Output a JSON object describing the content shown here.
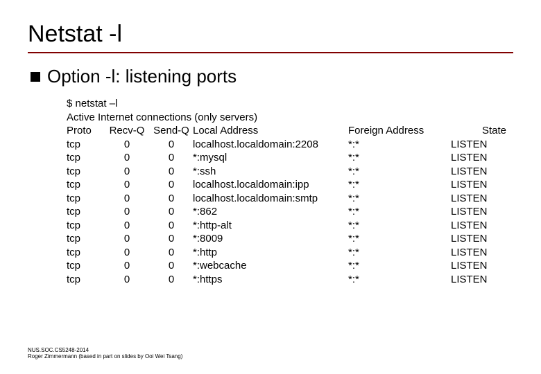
{
  "title": "Netstat -l",
  "bullet": "Option -l: listening ports",
  "cmd_line": "$ netstat –l",
  "header_line": "Active Internet connections (only servers)",
  "columns": {
    "proto": "Proto",
    "recvq": "Recv-Q",
    "sendq": "Send-Q",
    "local": "Local Address",
    "foreign": "Foreign Address",
    "state": "State"
  },
  "rows": [
    {
      "proto": "tcp",
      "recvq": "0",
      "sendq": "0",
      "local": "localhost.localdomain:2208",
      "foreign": "*:*",
      "state": "LISTEN"
    },
    {
      "proto": "tcp",
      "recvq": "0",
      "sendq": "0",
      "local": "*:mysql",
      "foreign": "*:*",
      "state": "LISTEN"
    },
    {
      "proto": "tcp",
      "recvq": "0",
      "sendq": "0",
      "local": "*:ssh",
      "foreign": "*:*",
      "state": "LISTEN"
    },
    {
      "proto": "tcp",
      "recvq": "0",
      "sendq": "0",
      "local": "localhost.localdomain:ipp",
      "foreign": "*:*",
      "state": "LISTEN"
    },
    {
      "proto": "tcp",
      "recvq": "0",
      "sendq": "0",
      "local": "localhost.localdomain:smtp",
      "foreign": "*:*",
      "state": "LISTEN"
    },
    {
      "proto": "tcp",
      "recvq": "0",
      "sendq": "0",
      "local": "*:862",
      "foreign": "*:*",
      "state": "LISTEN"
    },
    {
      "proto": "tcp",
      "recvq": "0",
      "sendq": "0",
      "local": "*:http-alt",
      "foreign": "*:*",
      "state": "LISTEN"
    },
    {
      "proto": "tcp",
      "recvq": "0",
      "sendq": "0",
      "local": "*:8009",
      "foreign": "*:*",
      "state": "LISTEN"
    },
    {
      "proto": "tcp",
      "recvq": "0",
      "sendq": "0",
      "local": "*:http",
      "foreign": "*:*",
      "state": "LISTEN"
    },
    {
      "proto": "tcp",
      "recvq": "0",
      "sendq": "0",
      "local": "*:webcache",
      "foreign": "*:*",
      "state": "LISTEN"
    },
    {
      "proto": "tcp",
      "recvq": "0",
      "sendq": "0",
      "local": "*:https",
      "foreign": "*:*",
      "state": "LISTEN"
    }
  ],
  "footer_line1": "NUS.SOC.CS5248-2014",
  "footer_line2": "Roger Zimmermann (based in part on slides by Ooi Wei Tsang)",
  "colors": {
    "rule": "#800000",
    "text": "#000000",
    "bg": "#ffffff"
  },
  "fontsizes": {
    "title": 34,
    "bullet": 26,
    "body": 15,
    "footer": 8
  }
}
